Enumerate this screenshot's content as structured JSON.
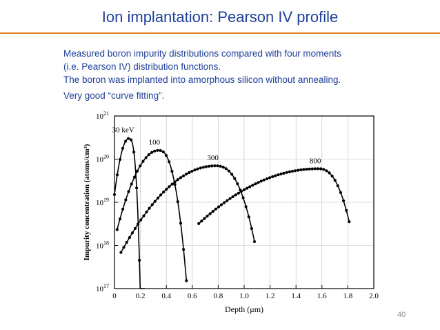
{
  "slide": {
    "title": "Ion implantation: Pearson IV profile",
    "lines": [
      "Measured boron impurity distributions compared with four moments",
      "(i.e. Pearson IV) distribution functions.",
      "The boron was implanted into amorphous silicon without annealing.",
      "Very good “curve fitting”."
    ],
    "page_number": "40",
    "accent_color": "#e0812a",
    "text_color": "#1f3f9a"
  },
  "chart_data": {
    "type": "line",
    "xlabel": "Depth (μm)",
    "ylabel": "Impurity concentration (atoms/cm³)",
    "xlim": [
      0,
      2.0
    ],
    "ylim_log10": [
      17,
      21
    ],
    "y_scale": "log",
    "grid": true,
    "x_ticks": [
      0,
      0.2,
      0.4,
      0.6,
      0.8,
      1.0,
      1.2,
      1.4,
      1.6,
      1.8,
      2.0
    ],
    "x_tick_labels": [
      "0",
      "0.2",
      "0.4",
      "0.6",
      "0.8",
      "1.0",
      "1.2",
      "1.4",
      "1.6",
      "1.8",
      "2.0"
    ],
    "y_ticks": [
      {
        "base": "10",
        "exp": "21"
      },
      {
        "base": "10",
        "exp": "20"
      },
      {
        "base": "10",
        "exp": "19"
      },
      {
        "base": "10",
        "exp": "18"
      },
      {
        "base": "10",
        "exp": "17"
      }
    ],
    "series": [
      {
        "name": "30 keV",
        "peak_depth": 0.11,
        "peak_conc": 3e+20,
        "sigma_left": 0.045,
        "sigma_right": 0.035,
        "right_power": 3,
        "left_end": 0.0,
        "right_end": 0.235
      },
      {
        "name": "100",
        "peak_depth": 0.34,
        "peak_conc": 1.6e+20,
        "sigma_left": 0.11,
        "sigma_right": 0.075,
        "right_power": 2.5,
        "left_end": 0.02,
        "right_end": 0.555
      },
      {
        "name": "300",
        "peak_depth": 0.78,
        "peak_conc": 7e+19,
        "sigma_left": 0.24,
        "sigma_right": 0.13,
        "right_power": 2.5,
        "left_end": 0.05,
        "right_end": 1.08
      },
      {
        "name": "800",
        "peak_depth": 1.57,
        "peak_conc": 6e+19,
        "sigma_left": 0.38,
        "sigma_right": 0.12,
        "right_power": 2.5,
        "left_end": 0.65,
        "right_end": 1.81
      }
    ]
  }
}
